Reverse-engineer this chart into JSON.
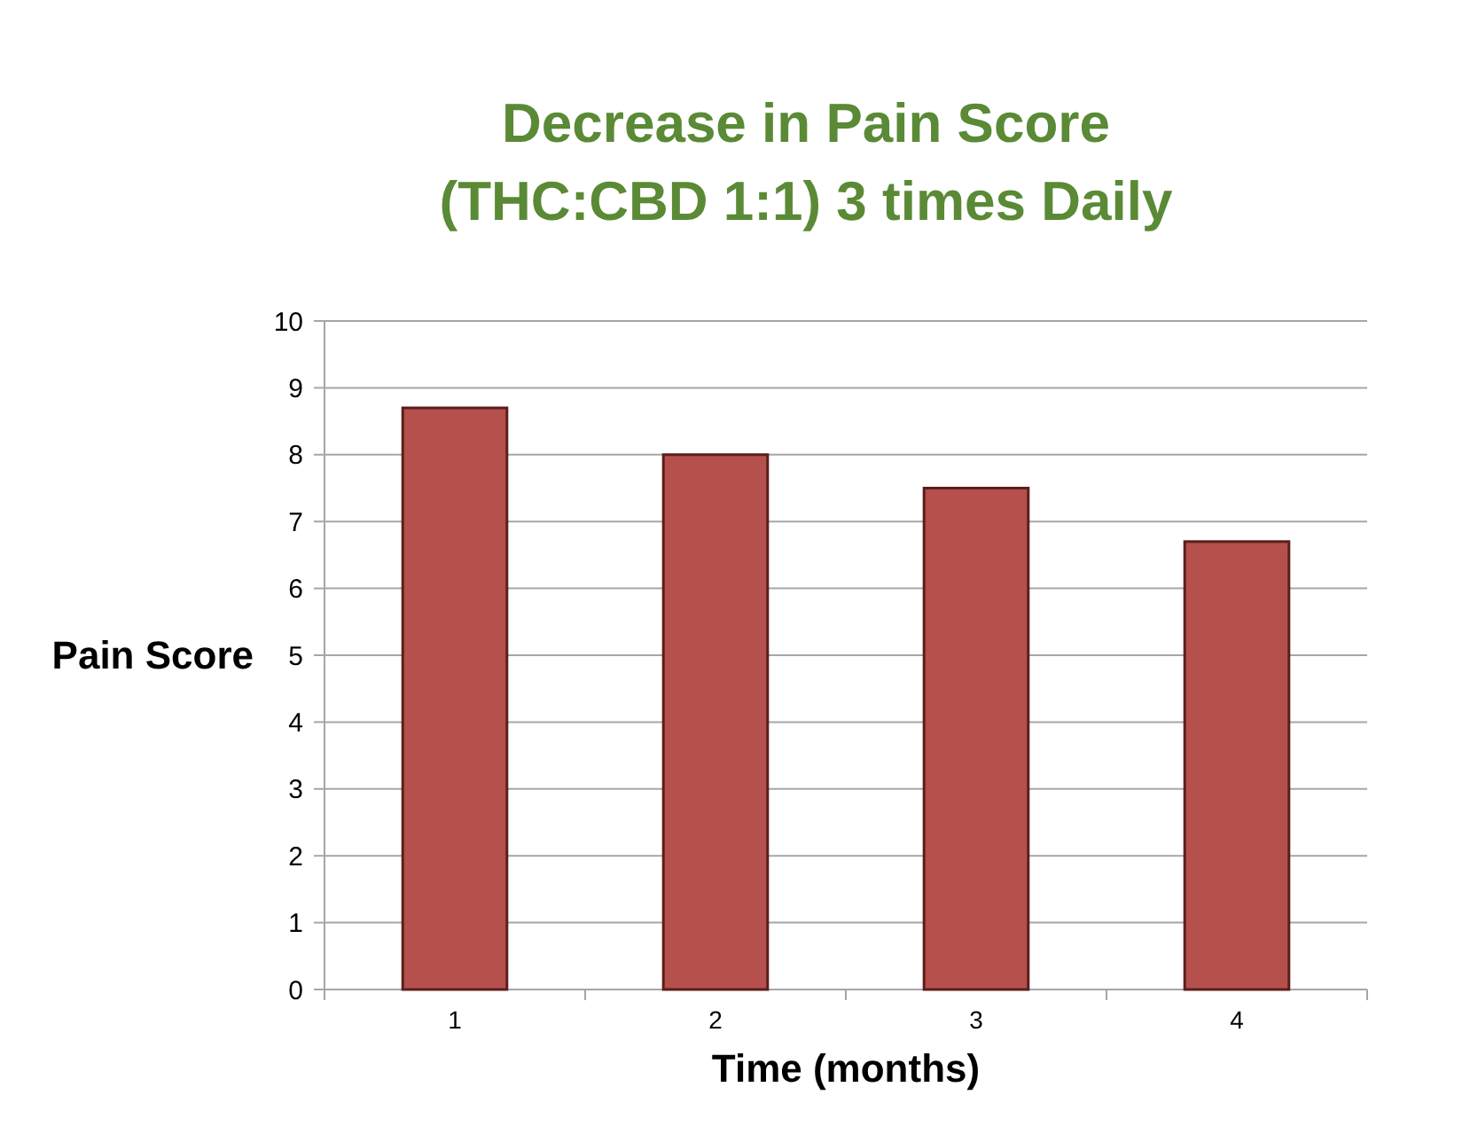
{
  "chart_data": {
    "type": "bar",
    "title": "Decrease in Pain Score\n(THC:CBD 1:1) 3 times Daily",
    "xlabel": "Time (months)",
    "ylabel": "Pain Score",
    "categories": [
      "1",
      "2",
      "3",
      "4"
    ],
    "values": [
      8.7,
      8.0,
      7.5,
      6.7
    ],
    "color": "#b5504c",
    "ylim": [
      0,
      10
    ],
    "yticks": [
      0,
      1,
      2,
      3,
      4,
      5,
      6,
      7,
      8,
      9,
      10
    ],
    "grid": "y"
  }
}
